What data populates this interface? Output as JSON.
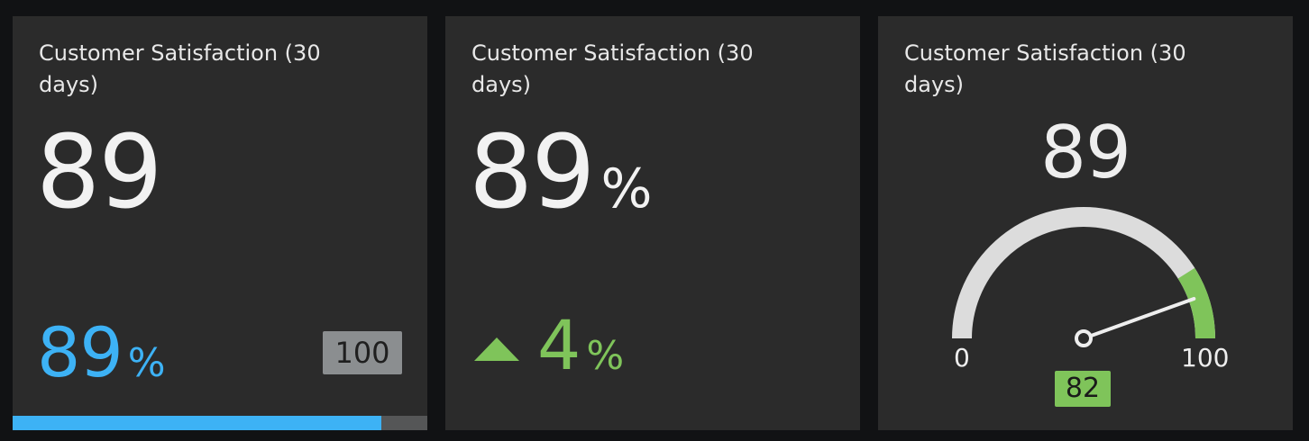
{
  "tiles": [
    {
      "title": "Customer Satisfaction (30 days)",
      "value": "89",
      "percent": {
        "value": "89",
        "unit": "%"
      },
      "max_label": "100",
      "progress_fraction": 0.89
    },
    {
      "title": "Customer Satisfaction (30 days)",
      "value": "89",
      "unit": "%",
      "trend": {
        "direction": "up",
        "value": "4",
        "unit": "%"
      }
    },
    {
      "title": "Customer Satisfaction (30 days)",
      "value": "89",
      "gauge": {
        "min": 0,
        "max": 100,
        "min_label": "0",
        "max_label": "100",
        "target": 82,
        "target_label": "82",
        "value": 89,
        "green_from": 82,
        "green_to": 100
      }
    }
  ],
  "colors": {
    "background": "#111214",
    "tile": "#2b2b2b",
    "blue_accent": "#3db2f5",
    "green_accent": "#7fc45a",
    "badge_gray": "#8b8e90",
    "arc_gray": "#dcdcdc"
  },
  "icons": {
    "trend": "triangle-up-icon"
  }
}
